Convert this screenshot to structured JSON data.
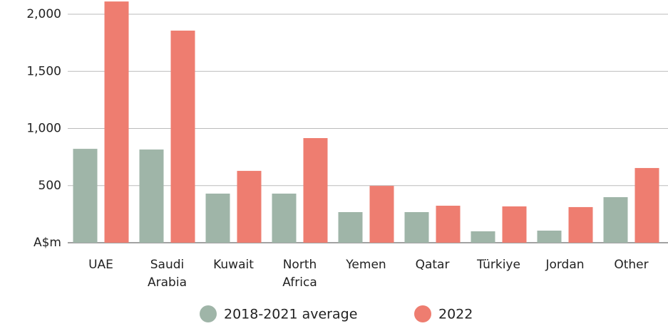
{
  "chart_data": {
    "type": "bar",
    "categories": [
      "UAE",
      "Saudi Arabia",
      "Kuwait",
      "North Africa",
      "Yemen",
      "Qatar",
      "Türkiye",
      "Jordan",
      "Other"
    ],
    "series": [
      {
        "name": "2018-2021 average",
        "color": "#9fb5a8",
        "values": [
          822,
          816,
          430,
          430,
          268,
          268,
          100,
          106,
          399
        ]
      },
      {
        "name": "2022",
        "color": "#ee7d70",
        "values": [
          2112,
          1857,
          629,
          916,
          498,
          324,
          318,
          312,
          654
        ]
      }
    ],
    "ylim": [
      0,
      2125
    ],
    "yticks": [
      {
        "value": 0,
        "label": "A$m"
      },
      500,
      {
        "value": 1000,
        "label": "1,000"
      },
      {
        "value": 1500,
        "label": "1,500"
      },
      {
        "value": 2000,
        "label": "2,000"
      }
    ],
    "grid": true,
    "legend": "bottom"
  }
}
